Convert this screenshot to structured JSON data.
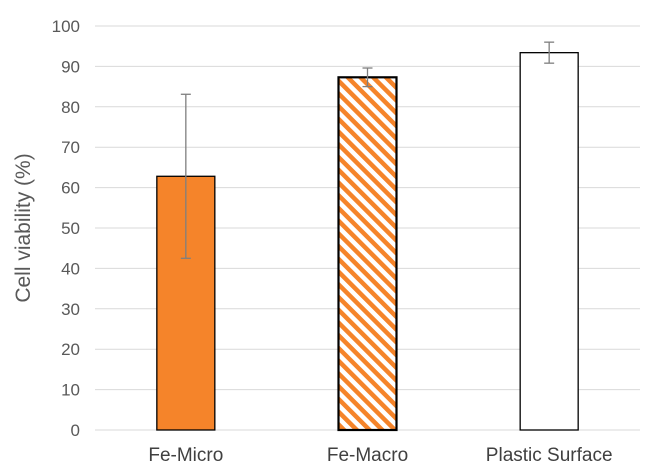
{
  "chart_data": {
    "type": "bar",
    "categories": [
      "Fe-Micro",
      "Fe-Macro",
      "Plastic Surface"
    ],
    "values": [
      62.8,
      87.3,
      93.4
    ],
    "errors": [
      20.3,
      2.3,
      2.6
    ],
    "bar_styles": [
      "solid",
      "hatched",
      "outline"
    ],
    "colors": {
      "accent": "#f5842a",
      "edge": "#000000",
      "grid": "#d9d9d9",
      "error_bar": "#7f7f7f"
    },
    "title": "",
    "xlabel": "",
    "ylabel": "Cell viability (%)",
    "ylim": [
      0,
      100
    ],
    "yticks": [
      0,
      10,
      20,
      30,
      40,
      50,
      60,
      70,
      80,
      90,
      100
    ],
    "grid": true
  }
}
